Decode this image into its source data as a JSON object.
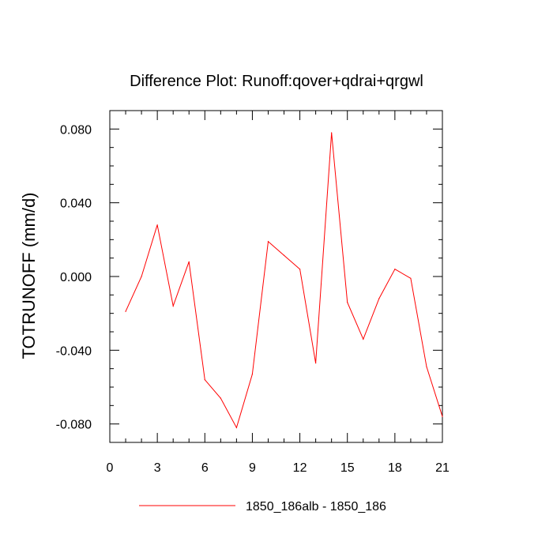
{
  "chart_data": {
    "type": "line",
    "title": "Difference Plot: Runoff:qover+qdrai+qrgwl",
    "xlabel": "",
    "ylabel": "TOTRUNOFF  (mm/d)",
    "xlim": [
      0,
      21
    ],
    "ylim": [
      -0.09,
      0.09
    ],
    "x_ticks": [
      0,
      3,
      6,
      9,
      12,
      15,
      18,
      21
    ],
    "x_tick_labels": [
      "0",
      "3",
      "6",
      "9",
      "12",
      "15",
      "18",
      "21"
    ],
    "y_ticks": [
      -0.08,
      -0.04,
      0.0,
      0.04,
      0.08
    ],
    "y_tick_labels": [
      "-0.080",
      "-0.040",
      "0.000",
      "0.040",
      "0.080"
    ],
    "grid": false,
    "legend_position": "bottom",
    "series": [
      {
        "name": "1850_186alb - 1850_186",
        "color": "#ff0000",
        "x": [
          1,
          2,
          3,
          4,
          5,
          6,
          7,
          8,
          9,
          10,
          11,
          12,
          13,
          14,
          15,
          16,
          17,
          18,
          19,
          20,
          21
        ],
        "values": [
          -0.019,
          0.0,
          0.028,
          -0.016,
          0.008,
          -0.056,
          -0.066,
          -0.082,
          -0.053,
          0.019,
          0.0115,
          0.004,
          -0.047,
          0.078,
          -0.014,
          -0.034,
          -0.012,
          0.004,
          -0.001,
          -0.049,
          -0.076
        ]
      }
    ]
  }
}
